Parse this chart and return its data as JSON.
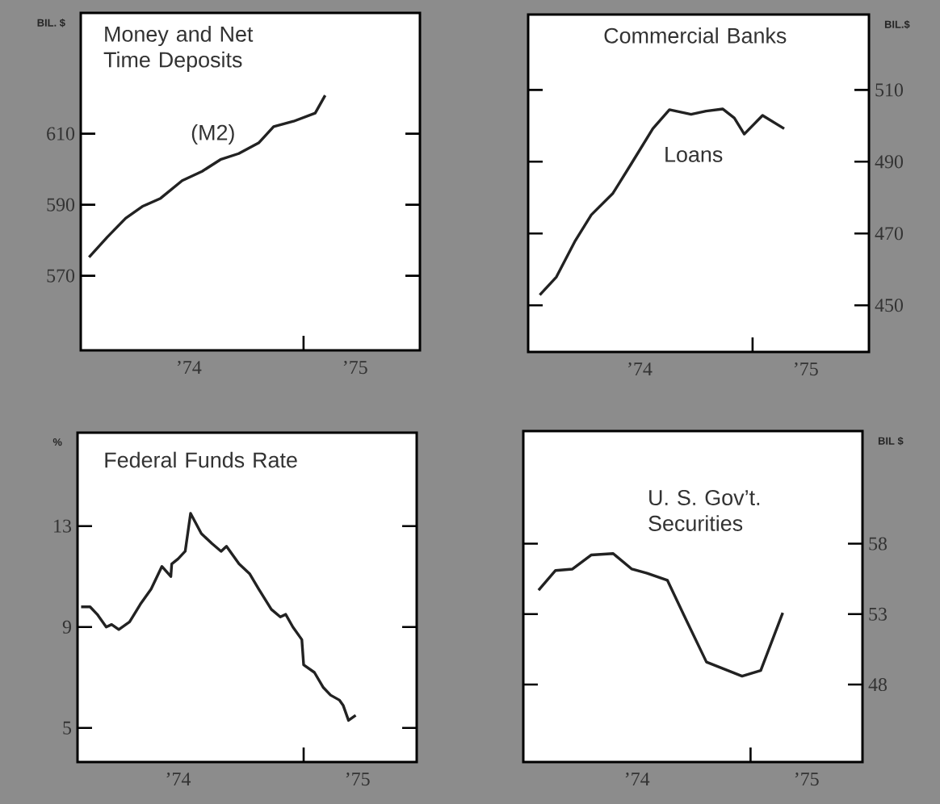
{
  "chart_data": [
    {
      "type": "line",
      "title": "Money and Net Time Deposits",
      "ylabel": "BIL. $",
      "x": [
        1973.4,
        1973.51,
        1973.62,
        1973.72,
        1973.83,
        1973.96,
        1974.08,
        1974.19,
        1974.3,
        1974.42,
        1974.51,
        1974.63,
        1974.76,
        1974.82
      ],
      "series": [
        {
          "name": "(M2)",
          "color": "#222222",
          "values": [
            575.2,
            580.9,
            586.2,
            589.5,
            591.8,
            596.8,
            599.4,
            602.7,
            604.4,
            607.4,
            612.0,
            613.5,
            615.8,
            620.8
          ]
        }
      ],
      "xlim": [
        1973.35,
        1975.39
      ],
      "ylim": [
        549,
        644
      ],
      "xticks": [
        {
          "value": 1974,
          "label": "’74"
        },
        {
          "value": 1974.69,
          "label": null
        },
        {
          "value": 1975,
          "label": "’75"
        }
      ],
      "yticks": [
        570,
        590,
        610
      ]
    },
    {
      "type": "line",
      "title": "Commercial Banks",
      "ylabel": "BIL.$",
      "x": [
        1973.4,
        1973.5,
        1973.61,
        1973.71,
        1973.84,
        1973.95,
        1974.08,
        1974.18,
        1974.31,
        1974.4,
        1974.5,
        1974.57,
        1974.63,
        1974.74,
        1974.87
      ],
      "series": [
        {
          "name": "Loans",
          "color": "#222222",
          "values": [
            452.9,
            457.9,
            467.7,
            475.2,
            481.2,
            489.4,
            499.2,
            504.5,
            503.2,
            504.1,
            504.7,
            502.2,
            497.7,
            502.9,
            499.2
          ]
        }
      ],
      "xlim": [
        1973.33,
        1975.38
      ],
      "ylim": [
        437,
        531
      ],
      "xticks": [
        {
          "value": 1974,
          "label": "’74"
        },
        {
          "value": 1974.68,
          "label": null
        },
        {
          "value": 1975,
          "label": "’75"
        }
      ],
      "yticks": [
        450,
        470,
        490,
        510
      ]
    },
    {
      "type": "line",
      "title": "Federal Funds Rate",
      "ylabel": "%",
      "x": [
        1973.46,
        1973.51,
        1973.55,
        1973.6,
        1973.63,
        1973.67,
        1973.73,
        1973.79,
        1973.85,
        1973.91,
        1973.96,
        1973.965,
        1974.0,
        1974.04,
        1974.07,
        1974.13,
        1974.19,
        1974.24,
        1974.27,
        1974.34,
        1974.4,
        1974.45,
        1974.52,
        1974.57,
        1974.6,
        1974.64,
        1974.69,
        1974.7,
        1974.76,
        1974.81,
        1974.85,
        1974.9,
        1974.92,
        1974.95,
        1974.99
      ],
      "series": [
        {
          "color": "#222222",
          "values": [
            9.8,
            9.8,
            9.5,
            9.0,
            9.1,
            8.9,
            9.2,
            9.9,
            10.5,
            11.4,
            11.0,
            11.5,
            11.7,
            12.0,
            13.5,
            12.7,
            12.3,
            12.0,
            12.2,
            11.5,
            11.1,
            10.5,
            9.7,
            9.4,
            9.5,
            9.0,
            8.5,
            7.5,
            7.2,
            6.6,
            6.3,
            6.1,
            5.9,
            5.3,
            5.5
          ]
        }
      ],
      "xlim": [
        1973.44,
        1975.33
      ],
      "ylim": [
        3.65,
        16.7
      ],
      "xticks": [
        {
          "value": 1974,
          "label": "’74"
        },
        {
          "value": 1974.7,
          "label": null
        },
        {
          "value": 1975,
          "label": "’75"
        }
      ],
      "yticks": [
        5,
        9,
        13
      ]
    },
    {
      "type": "line",
      "title": "U. S. Gov’t. Securities",
      "ylabel": "BIL $",
      "x": [
        1973.42,
        1973.52,
        1973.62,
        1973.73,
        1973.86,
        1973.97,
        1974.06,
        1974.18,
        1974.29,
        1974.41,
        1974.62,
        1974.73,
        1974.86
      ],
      "series": [
        {
          "color": "#222222",
          "values": [
            54.7,
            56.1,
            56.2,
            57.2,
            57.3,
            56.2,
            55.9,
            55.4,
            52.6,
            49.6,
            48.6,
            49.0,
            53.1
          ]
        }
      ],
      "xlim": [
        1973.33,
        1975.33
      ],
      "ylim": [
        42.5,
        66
      ],
      "xticks": [
        {
          "value": 1974,
          "label": "’74"
        },
        {
          "value": 1974.67,
          "label": null
        },
        {
          "value": 1975,
          "label": "’75"
        }
      ],
      "yticks": [
        48,
        53,
        58
      ]
    }
  ]
}
